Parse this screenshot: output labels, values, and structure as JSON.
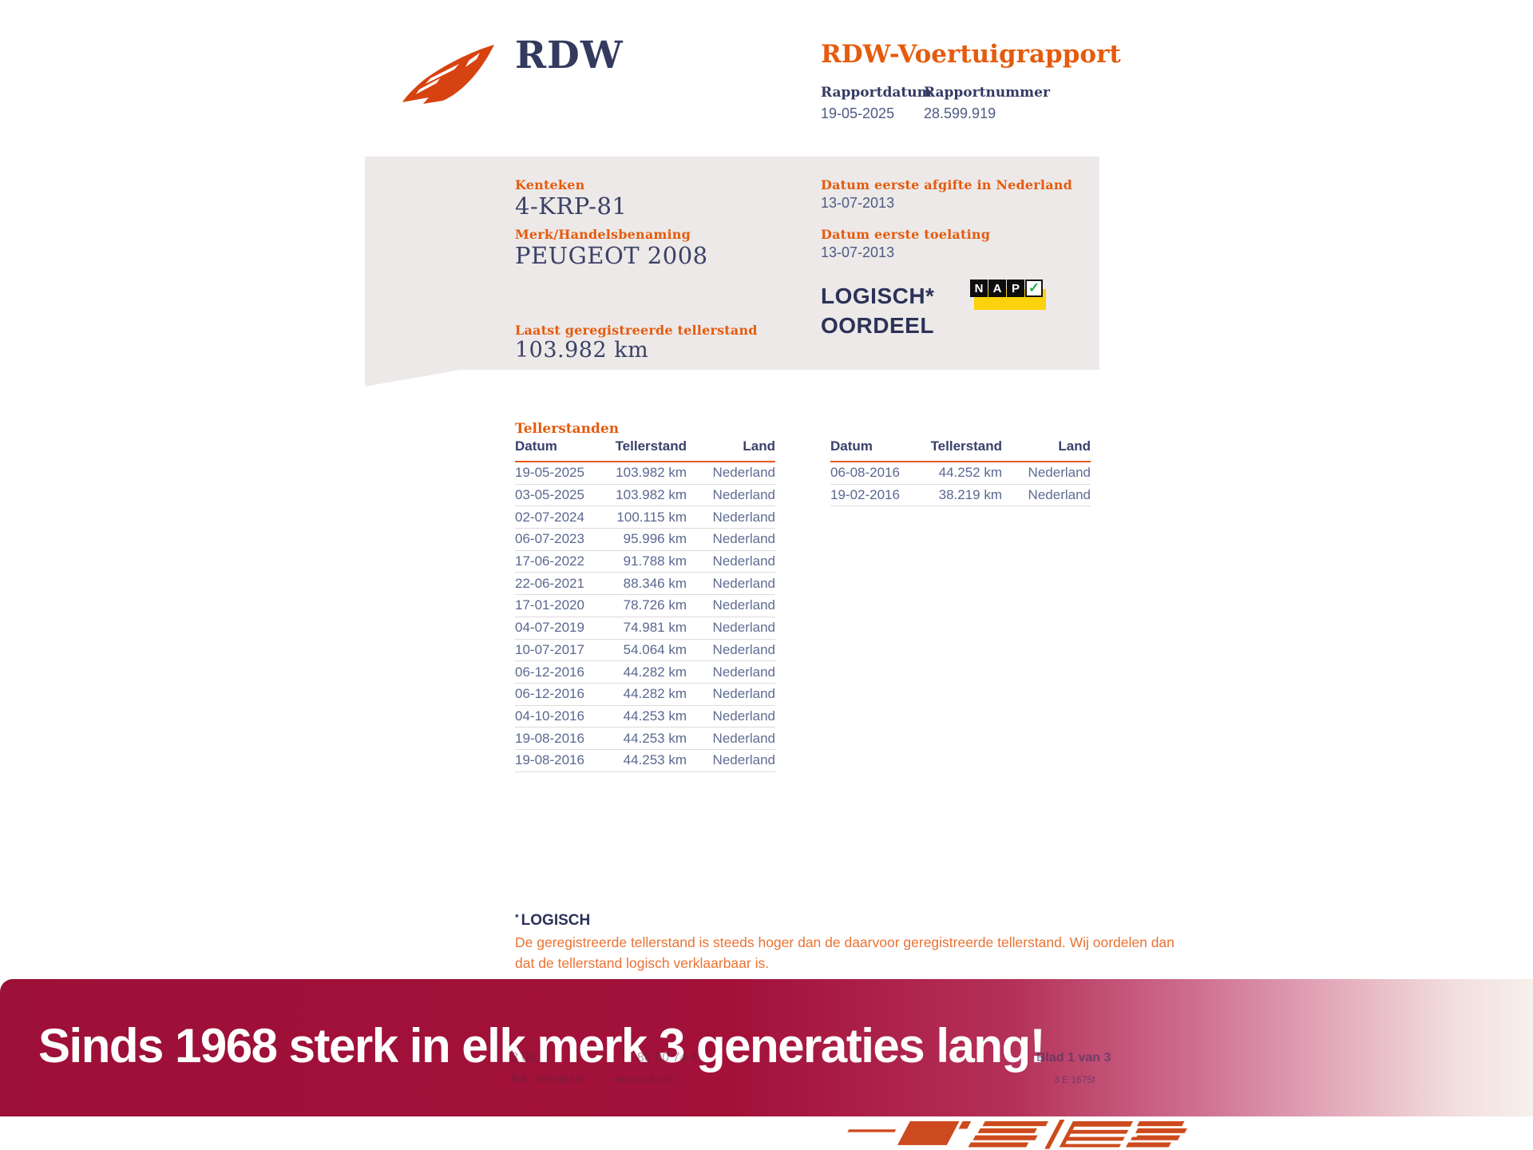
{
  "header": {
    "logo_text": "RDW",
    "report_title": "RDW-Voertuigrapport",
    "date_label": "Rapportdatum",
    "date_value": "19-05-2025",
    "number_label": "Rapportnummer",
    "number_value": "28.599.919"
  },
  "vehicle_card": {
    "kenteken_label": "Kenteken",
    "kenteken_value": "4-KRP-81",
    "merk_label": "Merk/Handelsbenaming",
    "merk_value": "PEUGEOT 2008",
    "tellerstand_label": "Laatst geregistreerde tellerstand",
    "tellerstand_value": "103.982 km",
    "afgifte_label": "Datum eerste afgifte in Nederland",
    "afgifte_value": "13-07-2013",
    "toelating_label": "Datum eerste toelating",
    "toelating_value": "13-07-2013",
    "oordeel_line1": "LOGISCH*",
    "oordeel_line2": "OORDEEL",
    "nap": {
      "letter1": "N",
      "letter2": "A",
      "letter3": "P",
      "check": "✓"
    }
  },
  "tables": {
    "section_title": "Tellerstanden",
    "headers": [
      "Datum",
      "Tellerstand",
      "Land"
    ],
    "left_rows": [
      {
        "date": "19-05-2025",
        "km": "103.982 km",
        "land": "Nederland"
      },
      {
        "date": "03-05-2025",
        "km": "103.982 km",
        "land": "Nederland"
      },
      {
        "date": "02-07-2024",
        "km": "100.115 km",
        "land": "Nederland"
      },
      {
        "date": "06-07-2023",
        "km": "95.996 km",
        "land": "Nederland"
      },
      {
        "date": "17-06-2022",
        "km": "91.788 km",
        "land": "Nederland"
      },
      {
        "date": "22-06-2021",
        "km": "88.346 km",
        "land": "Nederland"
      },
      {
        "date": "17-01-2020",
        "km": "78.726 km",
        "land": "Nederland"
      },
      {
        "date": "04-07-2019",
        "km": "74.981 km",
        "land": "Nederland"
      },
      {
        "date": "10-07-2017",
        "km": "54.064 km",
        "land": "Nederland"
      },
      {
        "date": "06-12-2016",
        "km": "44.282 km",
        "land": "Nederland"
      },
      {
        "date": "06-12-2016",
        "km": "44.282 km",
        "land": "Nederland"
      },
      {
        "date": "04-10-2016",
        "km": "44.253 km",
        "land": "Nederland"
      },
      {
        "date": "19-08-2016",
        "km": "44.253 km",
        "land": "Nederland"
      },
      {
        "date": "19-08-2016",
        "km": "44.253 km",
        "land": "Nederland"
      }
    ],
    "right_rows": [
      {
        "date": "06-08-2016",
        "km": "44.252 km",
        "land": "Nederland"
      },
      {
        "date": "19-02-2016",
        "km": "38.219 km",
        "land": "Nederland"
      }
    ]
  },
  "footnote": {
    "mark": "*",
    "title": "LOGISCH",
    "line1": "De geregistreerde tellerstand is steeds hoger dan de daarvoor geregistreerde tellerstand. Wij oordelen dan",
    "line2": "dat de tellerstand logisch verklaarbaar is."
  },
  "banner": {
    "text": "Sinds 1968 sterk in elk merk 3 generaties lang!"
  },
  "faint_fragments": {
    "f1": "3 00",
    "f2": "88 00 74 4",
    "f3": "RA, Veendam",
    "f4": "www.rdw.nl",
    "f5": "Blad 1 van 3",
    "f6": "3 E 1675f"
  },
  "colors": {
    "accent_orange": "#e55b0e",
    "navy": "#333a63",
    "card_gray": "#ece9e8",
    "banner_red": "#a31139",
    "nap_yellow": "#fbd20b",
    "check_green": "#1faf4b",
    "dealer_logo_orange": "#cc4a1d"
  }
}
